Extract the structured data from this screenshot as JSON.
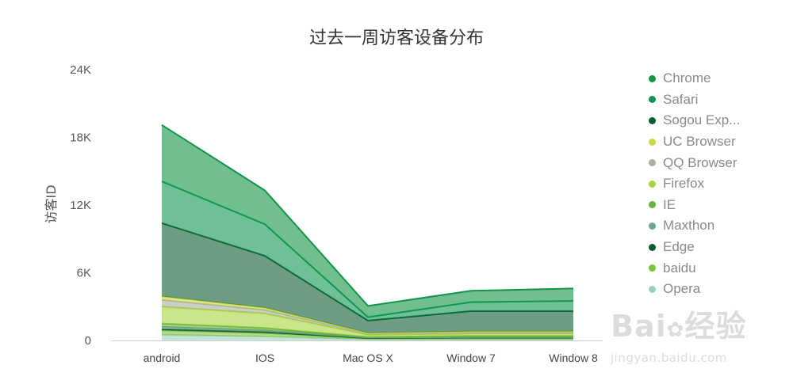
{
  "chart_data": {
    "type": "area",
    "stacked": true,
    "title": "过去一周访客设备分布",
    "ylabel": "访客ID",
    "xlabel": "",
    "categories": [
      "android",
      "IOS",
      "Mac OS X",
      "Window 7",
      "Window 8"
    ],
    "ylim": [
      0,
      24000
    ],
    "yticks": [
      0,
      6000,
      12000,
      18000,
      24000
    ],
    "ytick_labels": [
      "0",
      "6K",
      "12K",
      "18K",
      "24K"
    ],
    "legend_position": "right",
    "series": [
      {
        "name": "Chrome",
        "color": "#139447",
        "values": [
          5000,
          3000,
          1000,
          1000,
          1100
        ]
      },
      {
        "name": "Safari",
        "color": "#0f9650",
        "values": [
          3700,
          2800,
          300,
          800,
          900
        ]
      },
      {
        "name": "Sogou Exp...",
        "color": "#0b5c33",
        "values": [
          6500,
          4600,
          1100,
          1800,
          1800
        ]
      },
      {
        "name": "UC Browser",
        "color": "#c8d94a",
        "values": [
          300,
          200,
          50,
          100,
          100
        ]
      },
      {
        "name": "QQ Browser",
        "color": "#a9b39a",
        "values": [
          600,
          300,
          100,
          100,
          100
        ]
      },
      {
        "name": "Firefox",
        "color": "#a8d43d",
        "values": [
          1500,
          1300,
          200,
          200,
          200
        ]
      },
      {
        "name": "IE",
        "color": "#66b33d",
        "values": [
          300,
          200,
          50,
          100,
          100
        ]
      },
      {
        "name": "Maxthon",
        "color": "#6fa88a",
        "values": [
          200,
          150,
          50,
          50,
          50
        ]
      },
      {
        "name": "Edge",
        "color": "#0f5a33",
        "values": [
          100,
          100,
          30,
          50,
          50
        ]
      },
      {
        "name": "baidu",
        "color": "#7ec23c",
        "values": [
          400,
          300,
          80,
          100,
          100
        ]
      },
      {
        "name": "Opera",
        "color": "#9fd2b5",
        "values": [
          500,
          350,
          100,
          100,
          100
        ]
      }
    ]
  },
  "watermark": {
    "main_left": "Bai",
    "main_right": "经验",
    "sub": "jingyan.baidu.com"
  }
}
